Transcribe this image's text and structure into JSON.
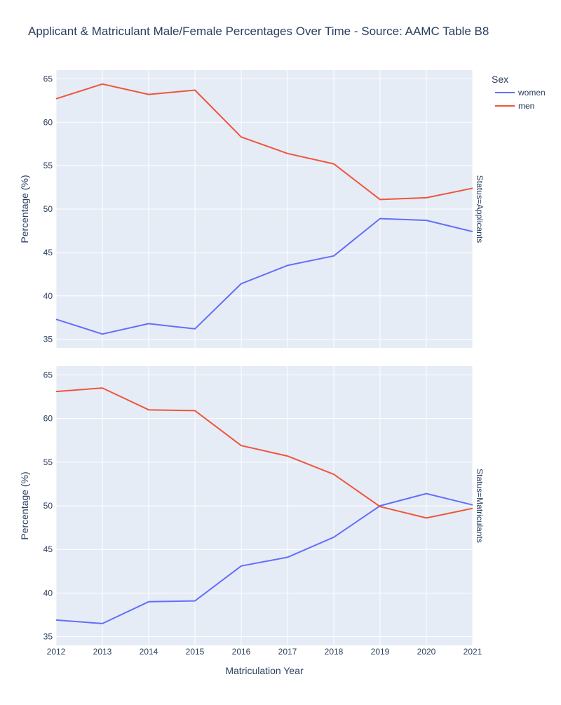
{
  "chart_data": {
    "type": "line",
    "title": "Applicant & Matriculant Male/Female Percentages Over Time - Source: AAMC Table B8",
    "xlabel": "Matriculation Year",
    "ylabel": "Percentage (%)",
    "x": [
      2012,
      2013,
      2014,
      2015,
      2016,
      2017,
      2018,
      2019,
      2020,
      2021
    ],
    "ylim": [
      34,
      66
    ],
    "yticks": [
      35,
      40,
      45,
      50,
      55,
      60,
      65
    ],
    "grid": true,
    "legend": {
      "title": "Sex",
      "placement": "top-right",
      "entries": [
        {
          "name": "women",
          "color": "#636efa"
        },
        {
          "name": "men",
          "color": "#ef553b"
        }
      ]
    },
    "facets": [
      {
        "label": "Status=Applicants",
        "series": [
          {
            "name": "women",
            "color": "#636efa",
            "values": [
              37.3,
              35.6,
              36.8,
              36.2,
              41.4,
              43.5,
              44.6,
              48.9,
              48.7,
              47.4
            ]
          },
          {
            "name": "men",
            "color": "#ef553b",
            "values": [
              62.7,
              64.4,
              63.2,
              63.7,
              58.3,
              56.4,
              55.2,
              51.1,
              51.3,
              52.4
            ]
          }
        ]
      },
      {
        "label": "Status=Matriculants",
        "series": [
          {
            "name": "women",
            "color": "#636efa",
            "values": [
              36.9,
              36.5,
              39.0,
              39.1,
              43.1,
              44.1,
              46.4,
              50.0,
              51.4,
              50.1
            ]
          },
          {
            "name": "men",
            "color": "#ef553b",
            "values": [
              63.1,
              63.5,
              61.0,
              60.9,
              56.9,
              55.7,
              53.6,
              49.9,
              48.6,
              49.7
            ]
          }
        ]
      }
    ]
  }
}
